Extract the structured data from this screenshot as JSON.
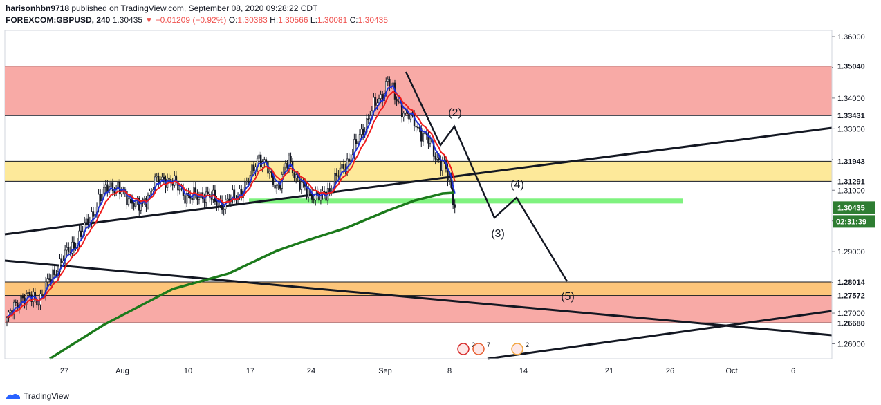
{
  "header": {
    "publisher_user": "harisonhbn9718",
    "publisher_text": "published on TradingView.com, September 08, 2020 09:28:22 CDT",
    "symbol": "FOREXCOM:GBPUSD, 240",
    "last": "1.30435",
    "change": "▼ −0.01209 (−0.92%)",
    "o_label": "O:",
    "o_val": "1.30383",
    "h_label": "H:",
    "h_val": "1.30566",
    "l_label": "L:",
    "l_val": "1.30081",
    "c_label": "C:",
    "c_val": "1.30435"
  },
  "footer": {
    "brand": "TradingView"
  },
  "colors": {
    "red_zone": "#f8aaa6",
    "yellow_zone": "#fde99a",
    "orange_zone": "#fdc57a",
    "green_band": "#7ff27f",
    "ma_blue": "#1e2fd6",
    "ma_red": "#ef1c1c",
    "ma_green": "#1b7a1b",
    "up": "#ffffff",
    "down": "#131722",
    "price_tag": "#2e7d32"
  },
  "chart_data": {
    "type": "candlestick",
    "symbol": "GBPUSD",
    "timeframe": "240",
    "ylim": [
      1.2565,
      1.3635
    ],
    "y_ticks": [
      "1.36000",
      "1.35000",
      "1.34000",
      "1.33000",
      "1.32000",
      "1.31000",
      "1.30000",
      "1.29000",
      "1.28000",
      "1.27000",
      "1.26000"
    ],
    "x_ticks": [
      "27",
      "Aug",
      "10",
      "17",
      "24",
      "Sep",
      "8",
      "14",
      "21",
      "26",
      "Oct",
      "6"
    ],
    "price_levels": [
      {
        "label": "1.35040"
      },
      {
        "label": "1.33431"
      },
      {
        "label": "1.31943"
      },
      {
        "label": "1.31291"
      },
      {
        "label": "1.28014"
      },
      {
        "label": "1.27572"
      },
      {
        "label": "1.26680"
      }
    ],
    "current_price": "1.30435",
    "countdown": "02:31:39",
    "zones": [
      {
        "name": "red-zone-top",
        "from": 1.3343,
        "to": 1.3504
      },
      {
        "name": "yellow-zone",
        "from": 1.3129,
        "to": 1.3194
      },
      {
        "name": "orange-zone",
        "from": 1.2757,
        "to": 1.2801
      },
      {
        "name": "red-zone-bottom",
        "from": 1.2668,
        "to": 1.2757
      }
    ],
    "wave_labels": [
      "(2)",
      "(3)",
      "(4)",
      "(5)"
    ],
    "event_badges": [
      "2",
      "7",
      "2"
    ]
  }
}
